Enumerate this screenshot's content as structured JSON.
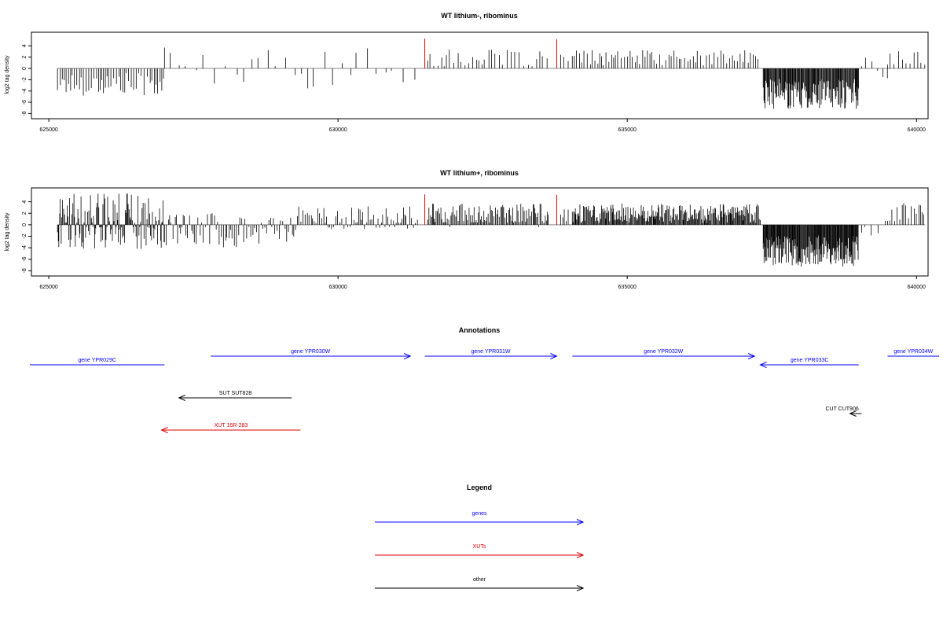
{
  "chart_data": [
    {
      "type": "bar",
      "title": "WT lithium-, ribominus",
      "ylabel": "log2 tag density",
      "xlabel": "",
      "xlim": [
        624700,
        640200
      ],
      "ylim": [
        -8.5,
        6
      ],
      "x_ticks": [
        625000,
        630000,
        635000,
        640000
      ],
      "x_tick_labels": [
        "625000",
        "630000",
        "635000",
        "640000"
      ],
      "y_ticks": [
        -8,
        -6,
        -4,
        -2,
        0,
        2,
        4
      ],
      "y_tick_labels": [
        "-8",
        "-6",
        "-4",
        "-2",
        "0",
        "2",
        "4"
      ],
      "grid": false,
      "highlight_color": "#dd0000",
      "highlights": [
        {
          "x": 631500,
          "value": 5.3
        },
        {
          "x": 633780,
          "value": 5.2
        }
      ],
      "segments": [
        {
          "from": 625150,
          "to": 627000,
          "mean": -2.8,
          "spread": 1.2,
          "step": 40
        },
        {
          "from": 627000,
          "to": 631400,
          "mean": 0.0,
          "spread": 2.2,
          "step": 150
        },
        {
          "from": 631550,
          "to": 633650,
          "mean": 1.8,
          "spread": 0.9,
          "step": 60
        },
        {
          "from": 633850,
          "to": 634000,
          "mean": 1.5,
          "spread": 0.8,
          "step": 60
        },
        {
          "from": 634050,
          "to": 637300,
          "mean": 1.9,
          "spread": 0.8,
          "step": 45
        },
        {
          "from": 637350,
          "to": 639000,
          "mean": -4.5,
          "spread": 1.6,
          "step": 12
        },
        {
          "from": 639050,
          "to": 639500,
          "mean": 0.0,
          "spread": 1.5,
          "step": 110
        },
        {
          "from": 639500,
          "to": 640150,
          "mean": 1.8,
          "spread": 0.8,
          "step": 60
        }
      ]
    },
    {
      "type": "bar",
      "title": "WT lithium+, ribominus",
      "ylabel": "log2 tag density",
      "xlabel": "",
      "xlim": [
        624700,
        640200
      ],
      "ylim": [
        -8.5,
        6
      ],
      "x_ticks": [
        625000,
        630000,
        635000,
        640000
      ],
      "x_tick_labels": [
        "625000",
        "630000",
        "635000",
        "640000"
      ],
      "y_ticks": [
        -8,
        -6,
        -4,
        -2,
        0,
        2,
        4
      ],
      "y_tick_labels": [
        "-8",
        "-6",
        "-4",
        "-2",
        "0",
        "2",
        "4"
      ],
      "grid": false,
      "highlight_color": "#dd0000",
      "highlights": [
        {
          "x": 631500,
          "value": 5.3
        },
        {
          "x": 633780,
          "value": 5.2
        }
      ],
      "segments": [
        {
          "from": 625150,
          "to": 627000,
          "mean": 1.2,
          "spread": 3.2,
          "step": 14
        },
        {
          "from": 627000,
          "to": 629300,
          "mean": -1.0,
          "spread": 1.8,
          "step": 30
        },
        {
          "from": 629300,
          "to": 631400,
          "mean": 1.2,
          "spread": 1.2,
          "step": 30
        },
        {
          "from": 631550,
          "to": 633650,
          "mean": 1.8,
          "spread": 1.1,
          "step": 20
        },
        {
          "from": 633850,
          "to": 634000,
          "mean": 1.5,
          "spread": 0.8,
          "step": 40
        },
        {
          "from": 634050,
          "to": 637300,
          "mean": 2.0,
          "spread": 1.0,
          "step": 14
        },
        {
          "from": 637350,
          "to": 639000,
          "mean": -4.6,
          "spread": 1.6,
          "step": 10
        },
        {
          "from": 639050,
          "to": 639500,
          "mean": 0.0,
          "spread": 1.5,
          "step": 90
        },
        {
          "from": 639500,
          "to": 640150,
          "mean": 2.2,
          "spread": 1.0,
          "step": 40
        }
      ]
    }
  ],
  "annotations": {
    "title": "Annotations",
    "items": [
      {
        "label": "gene YPR029C",
        "from": 627000,
        "to": 624500,
        "row": 0,
        "color": "#0000ff"
      },
      {
        "label": "gene YPR030W",
        "from": 627800,
        "to": 631250,
        "row": 1,
        "color": "#0000ff"
      },
      {
        "label": "gene YPR031W",
        "from": 631500,
        "to": 633780,
        "row": 1,
        "color": "#0000ff"
      },
      {
        "label": "gene YPR032W",
        "from": 634050,
        "to": 637200,
        "row": 1,
        "color": "#0000ff"
      },
      {
        "label": "gene YPR033C",
        "from": 639000,
        "to": 637300,
        "row": 0,
        "color": "#0000ff"
      },
      {
        "label": "gene YPR034W",
        "from": 639500,
        "to": 641000,
        "row": 1,
        "color": "#0000ff"
      },
      {
        "label": "SUT SUT828",
        "from": 629200,
        "to": 627250,
        "row": 2,
        "color": "#000000"
      },
      {
        "label": "XUT 16R-283",
        "from": 629350,
        "to": 626950,
        "row": 3,
        "color": "#dd0000"
      },
      {
        "label": "CUT CUT906",
        "from": 639050,
        "to": 638850,
        "row": 4,
        "color": "#000000"
      }
    ]
  },
  "legend": {
    "title": "Legend",
    "items": [
      {
        "label": "genes",
        "color": "#0000ff"
      },
      {
        "label": "XUTs",
        "color": "#dd0000"
      },
      {
        "label": "other",
        "color": "#000000"
      }
    ]
  }
}
